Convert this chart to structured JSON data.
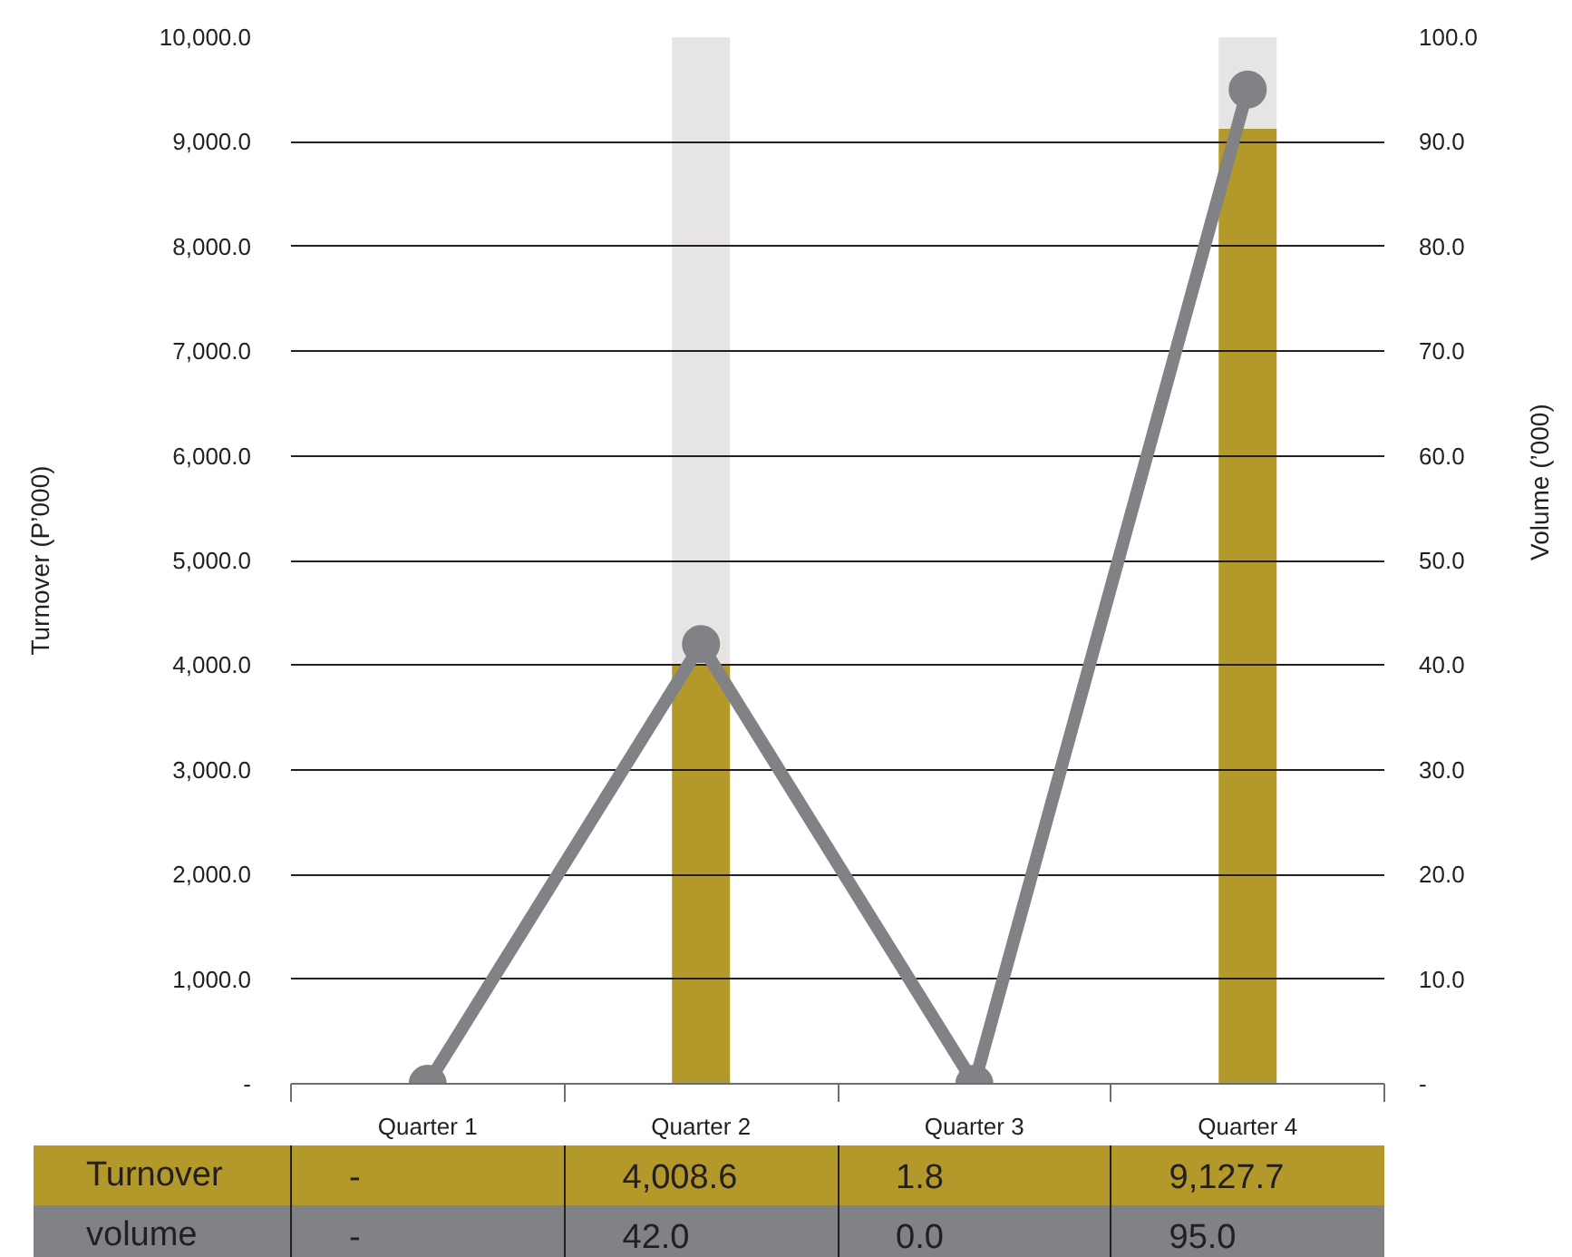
{
  "chart_data": {
    "type": "bar",
    "stacked": true,
    "categories": [
      "Quarter 1",
      "Quarter 2",
      "Quarter 3",
      "Quarter 4"
    ],
    "ylabel": "Turnover (P’000)",
    "y2label": "Volume (’000)",
    "ylim": [
      0,
      10000
    ],
    "yticks": [
      {
        "value": 0,
        "label": "-"
      },
      {
        "value": 1000,
        "label": "1,000.0"
      },
      {
        "value": 2000,
        "label": "2,000.0"
      },
      {
        "value": 3000,
        "label": "3,000.0"
      },
      {
        "value": 4000,
        "label": "4,000.0"
      },
      {
        "value": 5000,
        "label": "5,000.0"
      },
      {
        "value": 6000,
        "label": "6,000.0"
      },
      {
        "value": 7000,
        "label": "7,000.0"
      },
      {
        "value": 8000,
        "label": "8,000.0"
      },
      {
        "value": 9000,
        "label": "9,000.0"
      },
      {
        "value": 10000,
        "label": "10,000.0"
      }
    ],
    "y2lim": [
      0,
      100
    ],
    "y2ticks": [
      {
        "value": 0,
        "label": "-"
      },
      {
        "value": 10,
        "label": "10.0"
      },
      {
        "value": 20,
        "label": "20.0"
      },
      {
        "value": 30,
        "label": "30.0"
      },
      {
        "value": 40,
        "label": "40.0"
      },
      {
        "value": 50,
        "label": "50.0"
      },
      {
        "value": 60,
        "label": "60.0"
      },
      {
        "value": 70,
        "label": "70.0"
      },
      {
        "value": 80,
        "label": "80.0"
      },
      {
        "value": 90,
        "label": "90.0"
      },
      {
        "value": 100,
        "label": "100.0"
      }
    ],
    "grid": "y",
    "series": [
      {
        "name": "Turnover",
        "color": "#b3982a",
        "values": [
          0,
          4008.6,
          1.8,
          9127.7
        ],
        "value_labels": [
          "-",
          "4,008.6",
          "1.8",
          "9,127.7"
        ]
      },
      {
        "color": "#e6e5e3",
        "values": [
          null,
          5990,
          null,
          870
        ]
      },
      {
        "name": "volume",
        "type": "line",
        "axis": "y2",
        "color": "#808285",
        "marker": "circle",
        "line_style": "solid",
        "values": [
          0,
          42.0,
          0.0,
          95.0
        ],
        "value_labels": [
          "-",
          "42.0",
          "0.0",
          "95.0"
        ]
      }
    ]
  }
}
